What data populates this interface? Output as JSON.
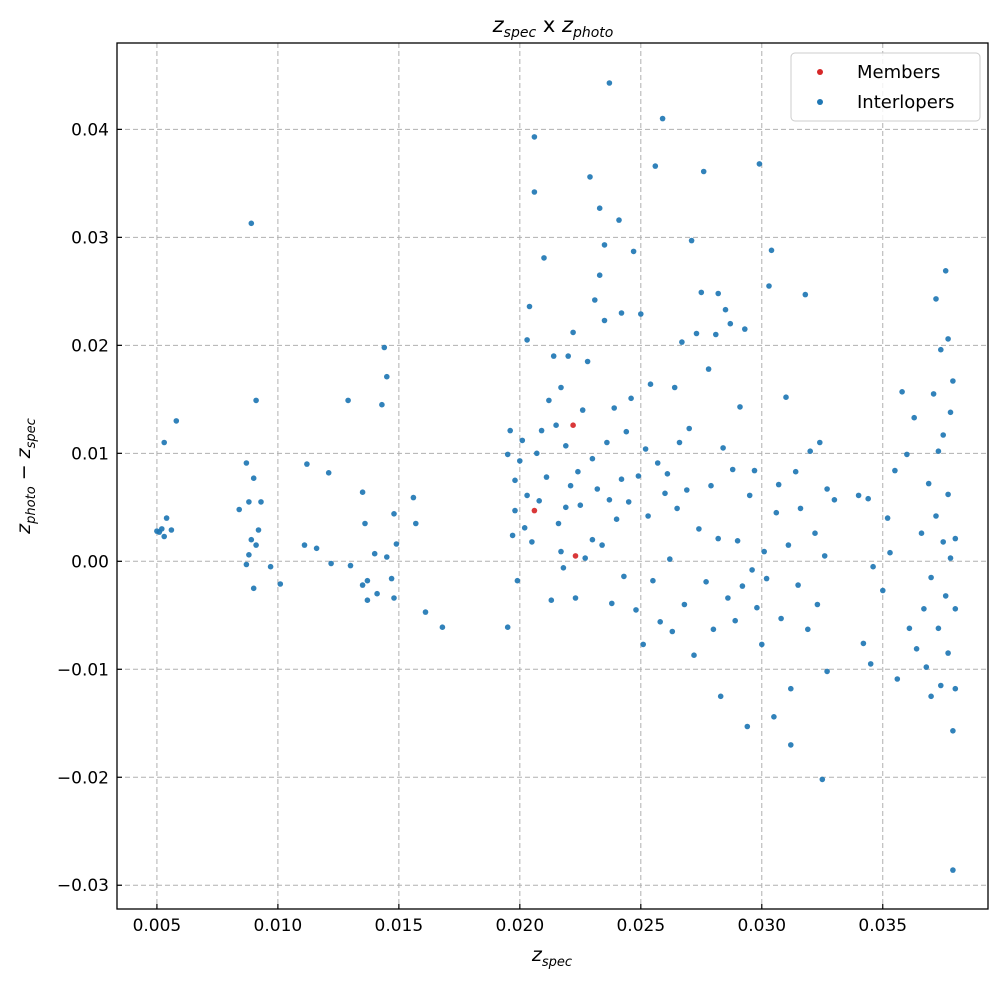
{
  "chart_data": {
    "type": "scatter",
    "title": {
      "main": "z",
      "main_sub": "spec",
      "mid": " x ",
      "second": "z",
      "second_sub": "photo"
    },
    "xlabel": {
      "main": "z",
      "sub": "spec"
    },
    "ylabel": {
      "a": "z",
      "a_sub": "photo",
      "minus": " − ",
      "b": "z",
      "b_sub": "spec"
    },
    "xlim": [
      0.00335,
      0.03935
    ],
    "ylim": [
      -0.0322,
      0.048
    ],
    "xticks": [
      0.005,
      0.01,
      0.015,
      0.02,
      0.025,
      0.03,
      0.035
    ],
    "xtick_labels": [
      "0.005",
      "0.010",
      "0.015",
      "0.020",
      "0.025",
      "0.030",
      "0.035"
    ],
    "yticks": [
      -0.03,
      -0.02,
      -0.01,
      0.0,
      0.01,
      0.02,
      0.03,
      0.04
    ],
    "ytick_labels": [
      "−0.03",
      "−0.02",
      "−0.01",
      "0.00",
      "0.01",
      "0.02",
      "0.03",
      "0.04"
    ],
    "grid": true,
    "legend_position": "top-right",
    "series": [
      {
        "name": "Members",
        "color": "#d62728",
        "points": [
          [
            0.0222,
            0.0126
          ],
          [
            0.0206,
            0.0047
          ],
          [
            0.0223,
            0.0005
          ]
        ]
      },
      {
        "name": "Interlopers",
        "color": "#1f77b4",
        "points": [
          [
            0.005,
            0.0028
          ],
          [
            0.0051,
            0.0027
          ],
          [
            0.0052,
            0.003
          ],
          [
            0.0053,
            0.0023
          ],
          [
            0.0054,
            0.004
          ],
          [
            0.0056,
            0.0029
          ],
          [
            0.0053,
            0.011
          ],
          [
            0.0058,
            0.013
          ],
          [
            0.0084,
            0.0048
          ],
          [
            0.0087,
            0.0091
          ],
          [
            0.0088,
            0.0055
          ],
          [
            0.0089,
            0.002
          ],
          [
            0.009,
            0.0077
          ],
          [
            0.0089,
            0.0313
          ],
          [
            0.0091,
            0.0149
          ],
          [
            0.0092,
            0.0029
          ],
          [
            0.0093,
            0.0055
          ],
          [
            0.0091,
            0.0015
          ],
          [
            0.0087,
            -0.0003
          ],
          [
            0.0088,
            0.0006
          ],
          [
            0.009,
            -0.0025
          ],
          [
            0.0097,
            -0.0005
          ],
          [
            0.0101,
            -0.0021
          ],
          [
            0.0112,
            0.009
          ],
          [
            0.0111,
            0.0015
          ],
          [
            0.0116,
            0.0012
          ],
          [
            0.0121,
            0.0082
          ],
          [
            0.0122,
            -0.0002
          ],
          [
            0.0129,
            0.0149
          ],
          [
            0.013,
            -0.0004
          ],
          [
            0.0135,
            0.0064
          ],
          [
            0.0136,
            0.0035
          ],
          [
            0.0135,
            -0.0022
          ],
          [
            0.0137,
            -0.0018
          ],
          [
            0.0137,
            -0.0036
          ],
          [
            0.014,
            0.0007
          ],
          [
            0.0141,
            -0.003
          ],
          [
            0.0143,
            0.0145
          ],
          [
            0.0144,
            0.0198
          ],
          [
            0.0145,
            0.0171
          ],
          [
            0.0145,
            0.0004
          ],
          [
            0.0147,
            -0.0016
          ],
          [
            0.0148,
            0.0044
          ],
          [
            0.0148,
            -0.0034
          ],
          [
            0.0149,
            0.0016
          ],
          [
            0.0156,
            0.0059
          ],
          [
            0.0157,
            0.0035
          ],
          [
            0.0161,
            -0.0047
          ],
          [
            0.0168,
            -0.0061
          ],
          [
            0.0195,
            -0.0061
          ],
          [
            0.0195,
            0.0099
          ],
          [
            0.0196,
            0.0121
          ],
          [
            0.0197,
            0.0024
          ],
          [
            0.0198,
            0.0047
          ],
          [
            0.0198,
            0.0075
          ],
          [
            0.0199,
            -0.0018
          ],
          [
            0.02,
            0.0093
          ],
          [
            0.0201,
            0.0112
          ],
          [
            0.0202,
            0.0031
          ],
          [
            0.0203,
            0.0061
          ],
          [
            0.0203,
            0.0205
          ],
          [
            0.0204,
            0.0236
          ],
          [
            0.0205,
            0.0018
          ],
          [
            0.0206,
            0.0342
          ],
          [
            0.0206,
            0.0393
          ],
          [
            0.0207,
            0.01
          ],
          [
            0.0208,
            0.0056
          ],
          [
            0.0209,
            0.0121
          ],
          [
            0.021,
            0.0281
          ],
          [
            0.0211,
            0.0078
          ],
          [
            0.0212,
            0.0149
          ],
          [
            0.0213,
            -0.0036
          ],
          [
            0.0214,
            0.019
          ],
          [
            0.0215,
            0.0126
          ],
          [
            0.0216,
            0.0035
          ],
          [
            0.0217,
            0.0009
          ],
          [
            0.0217,
            0.0161
          ],
          [
            0.0218,
            -0.0006
          ],
          [
            0.0219,
            0.005
          ],
          [
            0.0219,
            0.0107
          ],
          [
            0.022,
            0.019
          ],
          [
            0.0221,
            0.007
          ],
          [
            0.0222,
            0.0212
          ],
          [
            0.0223,
            -0.0034
          ],
          [
            0.0224,
            0.0083
          ],
          [
            0.0225,
            0.0052
          ],
          [
            0.0226,
            0.014
          ],
          [
            0.0227,
            0.0003
          ],
          [
            0.0228,
            0.0185
          ],
          [
            0.0229,
            0.0356
          ],
          [
            0.023,
            0.002
          ],
          [
            0.023,
            0.0095
          ],
          [
            0.0231,
            0.0242
          ],
          [
            0.0232,
            0.0067
          ],
          [
            0.0233,
            0.0265
          ],
          [
            0.0233,
            0.0327
          ],
          [
            0.0234,
            0.0015
          ],
          [
            0.0235,
            0.0293
          ],
          [
            0.0235,
            0.0223
          ],
          [
            0.0236,
            0.011
          ],
          [
            0.0237,
            0.0057
          ],
          [
            0.0237,
            0.0443
          ],
          [
            0.0238,
            -0.0039
          ],
          [
            0.0239,
            0.0142
          ],
          [
            0.024,
            0.0039
          ],
          [
            0.0241,
            0.0316
          ],
          [
            0.0242,
            0.023
          ],
          [
            0.0242,
            0.0076
          ],
          [
            0.0243,
            -0.0014
          ],
          [
            0.0244,
            0.012
          ],
          [
            0.0245,
            0.0055
          ],
          [
            0.0246,
            0.0151
          ],
          [
            0.0247,
            0.0287
          ],
          [
            0.0248,
            -0.0045
          ],
          [
            0.0249,
            0.0079
          ],
          [
            0.025,
            0.0229
          ],
          [
            0.0251,
            -0.0077
          ],
          [
            0.0252,
            0.0104
          ],
          [
            0.0253,
            0.0042
          ],
          [
            0.0254,
            0.0164
          ],
          [
            0.0255,
            -0.0018
          ],
          [
            0.0256,
            0.0366
          ],
          [
            0.0257,
            0.0091
          ],
          [
            0.0258,
            -0.0056
          ],
          [
            0.0259,
            0.041
          ],
          [
            0.026,
            0.0063
          ],
          [
            0.0261,
            0.0081
          ],
          [
            0.0262,
            0.0002
          ],
          [
            0.0263,
            -0.0065
          ],
          [
            0.0264,
            0.0161
          ],
          [
            0.0265,
            0.0049
          ],
          [
            0.0266,
            0.011
          ],
          [
            0.0267,
            0.0203
          ],
          [
            0.0268,
            -0.004
          ],
          [
            0.0269,
            0.0066
          ],
          [
            0.027,
            0.0123
          ],
          [
            0.0271,
            0.0297
          ],
          [
            0.0272,
            -0.0087
          ],
          [
            0.0273,
            0.0211
          ],
          [
            0.0274,
            0.003
          ],
          [
            0.0275,
            0.0249
          ],
          [
            0.0276,
            0.0361
          ],
          [
            0.0277,
            -0.0019
          ],
          [
            0.0278,
            0.0178
          ],
          [
            0.0279,
            0.007
          ],
          [
            0.028,
            -0.0063
          ],
          [
            0.0281,
            0.021
          ],
          [
            0.0282,
            0.0021
          ],
          [
            0.0282,
            0.0248
          ],
          [
            0.0283,
            -0.0125
          ],
          [
            0.0284,
            0.0105
          ],
          [
            0.0285,
            0.0233
          ],
          [
            0.0286,
            -0.0034
          ],
          [
            0.0287,
            0.022
          ],
          [
            0.0288,
            0.0085
          ],
          [
            0.0289,
            -0.0055
          ],
          [
            0.029,
            0.0019
          ],
          [
            0.0291,
            0.0143
          ],
          [
            0.0292,
            -0.0023
          ],
          [
            0.0293,
            0.0215
          ],
          [
            0.0294,
            -0.0153
          ],
          [
            0.0295,
            0.0061
          ],
          [
            0.0296,
            -0.0008
          ],
          [
            0.0297,
            0.0084
          ],
          [
            0.0298,
            -0.0043
          ],
          [
            0.0299,
            0.0368
          ],
          [
            0.03,
            -0.0077
          ],
          [
            0.0301,
            0.0009
          ],
          [
            0.0302,
            -0.0016
          ],
          [
            0.0303,
            0.0255
          ],
          [
            0.0304,
            0.0288
          ],
          [
            0.0305,
            -0.0144
          ],
          [
            0.0306,
            0.0045
          ],
          [
            0.0307,
            0.0071
          ],
          [
            0.0308,
            -0.0053
          ],
          [
            0.031,
            0.0152
          ],
          [
            0.0311,
            0.0015
          ],
          [
            0.0312,
            -0.0118
          ],
          [
            0.0312,
            -0.017
          ],
          [
            0.0314,
            0.0083
          ],
          [
            0.0315,
            -0.0022
          ],
          [
            0.0316,
            0.0049
          ],
          [
            0.0318,
            0.0247
          ],
          [
            0.0319,
            -0.0063
          ],
          [
            0.032,
            0.0102
          ],
          [
            0.0322,
            0.0026
          ],
          [
            0.0323,
            -0.004
          ],
          [
            0.0324,
            0.011
          ],
          [
            0.0325,
            -0.0202
          ],
          [
            0.0326,
            0.0005
          ],
          [
            0.0327,
            0.0067
          ],
          [
            0.0327,
            -0.0102
          ],
          [
            0.033,
            0.0057
          ],
          [
            0.034,
            0.0061
          ],
          [
            0.0342,
            -0.0076
          ],
          [
            0.0344,
            0.0058
          ],
          [
            0.0345,
            -0.0095
          ],
          [
            0.0346,
            -0.0005
          ],
          [
            0.035,
            -0.0027
          ],
          [
            0.0352,
            0.004
          ],
          [
            0.0353,
            0.0008
          ],
          [
            0.0355,
            0.0084
          ],
          [
            0.0356,
            -0.0109
          ],
          [
            0.0358,
            0.0157
          ],
          [
            0.036,
            0.0099
          ],
          [
            0.0361,
            -0.0062
          ],
          [
            0.0363,
            0.0133
          ],
          [
            0.0364,
            -0.0081
          ],
          [
            0.0366,
            0.0026
          ],
          [
            0.0367,
            -0.0044
          ],
          [
            0.0368,
            -0.0098
          ],
          [
            0.0369,
            0.0072
          ],
          [
            0.037,
            -0.0125
          ],
          [
            0.037,
            -0.0015
          ],
          [
            0.0371,
            0.0155
          ],
          [
            0.0372,
            0.0243
          ],
          [
            0.0372,
            0.0042
          ],
          [
            0.0373,
            -0.0062
          ],
          [
            0.0373,
            0.0102
          ],
          [
            0.0374,
            0.0196
          ],
          [
            0.0374,
            -0.0115
          ],
          [
            0.0375,
            0.0018
          ],
          [
            0.0375,
            0.0117
          ],
          [
            0.0376,
            0.0269
          ],
          [
            0.0376,
            -0.0032
          ],
          [
            0.0377,
            0.0206
          ],
          [
            0.0377,
            0.0062
          ],
          [
            0.0377,
            -0.0085
          ],
          [
            0.0378,
            0.0138
          ],
          [
            0.0378,
            0.0003
          ],
          [
            0.0379,
            -0.0157
          ],
          [
            0.0379,
            -0.0286
          ],
          [
            0.0379,
            0.0167
          ],
          [
            0.038,
            -0.0044
          ],
          [
            0.038,
            -0.0118
          ],
          [
            0.038,
            0.0021
          ]
        ]
      }
    ]
  }
}
